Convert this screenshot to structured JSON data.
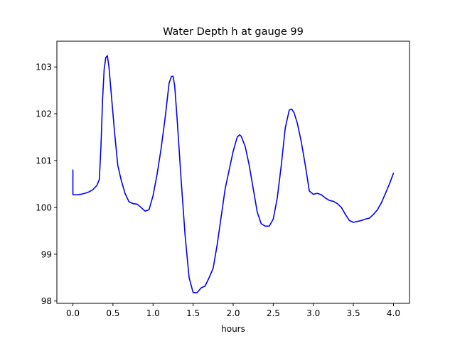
{
  "chart_data": {
    "type": "line",
    "title": "Water Depth h at gauge 99",
    "xlabel": "hours",
    "ylabel": "",
    "xlim": [
      -0.2,
      4.2
    ],
    "ylim": [
      97.95,
      103.55
    ],
    "xticks": [
      0.0,
      0.5,
      1.0,
      1.5,
      2.0,
      2.5,
      3.0,
      3.5,
      4.0
    ],
    "xtick_labels": [
      "0.0",
      "0.5",
      "1.0",
      "1.5",
      "2.0",
      "2.5",
      "3.0",
      "3.5",
      "4.0"
    ],
    "yticks": [
      98,
      99,
      100,
      101,
      102,
      103
    ],
    "ytick_labels": [
      "98",
      "99",
      "100",
      "101",
      "102",
      "103"
    ],
    "grid": false,
    "series": [
      {
        "color": "#0000ff",
        "x": [
          0.0,
          0.0,
          0.05,
          0.1,
          0.15,
          0.2,
          0.25,
          0.3,
          0.33,
          0.35,
          0.37,
          0.39,
          0.41,
          0.43,
          0.45,
          0.48,
          0.52,
          0.56,
          0.6,
          0.65,
          0.7,
          0.75,
          0.8,
          0.85,
          0.9,
          0.95,
          1.0,
          1.05,
          1.1,
          1.15,
          1.2,
          1.23,
          1.25,
          1.27,
          1.3,
          1.35,
          1.4,
          1.45,
          1.5,
          1.55,
          1.6,
          1.65,
          1.7,
          1.75,
          1.8,
          1.85,
          1.9,
          1.95,
          2.0,
          2.05,
          2.08,
          2.1,
          2.15,
          2.2,
          2.25,
          2.3,
          2.35,
          2.4,
          2.45,
          2.5,
          2.55,
          2.6,
          2.65,
          2.7,
          2.73,
          2.76,
          2.8,
          2.85,
          2.9,
          2.95,
          3.0,
          3.05,
          3.1,
          3.15,
          3.2,
          3.25,
          3.3,
          3.35,
          3.4,
          3.45,
          3.5,
          3.55,
          3.6,
          3.65,
          3.7,
          3.75,
          3.8,
          3.85,
          3.9,
          3.95,
          4.0
        ],
        "values": [
          100.8,
          100.27,
          100.27,
          100.28,
          100.3,
          100.33,
          100.38,
          100.47,
          100.6,
          101.3,
          102.3,
          102.95,
          103.2,
          103.24,
          103.0,
          102.4,
          101.6,
          100.9,
          100.6,
          100.3,
          100.12,
          100.08,
          100.07,
          100.0,
          99.92,
          99.95,
          100.25,
          100.7,
          101.25,
          101.9,
          102.65,
          102.8,
          102.8,
          102.6,
          101.9,
          100.6,
          99.4,
          98.5,
          98.18,
          98.18,
          98.28,
          98.32,
          98.5,
          98.7,
          99.2,
          99.8,
          100.4,
          100.8,
          101.2,
          101.5,
          101.55,
          101.52,
          101.3,
          100.9,
          100.4,
          99.9,
          99.65,
          99.6,
          99.6,
          99.75,
          100.2,
          100.9,
          101.7,
          102.08,
          102.1,
          102.02,
          101.8,
          101.4,
          100.9,
          100.35,
          100.28,
          100.3,
          100.27,
          100.2,
          100.15,
          100.13,
          100.08,
          100.0,
          99.85,
          99.72,
          99.68,
          99.7,
          99.72,
          99.75,
          99.77,
          99.85,
          99.95,
          100.1,
          100.3,
          100.5,
          100.73
        ]
      }
    ]
  }
}
